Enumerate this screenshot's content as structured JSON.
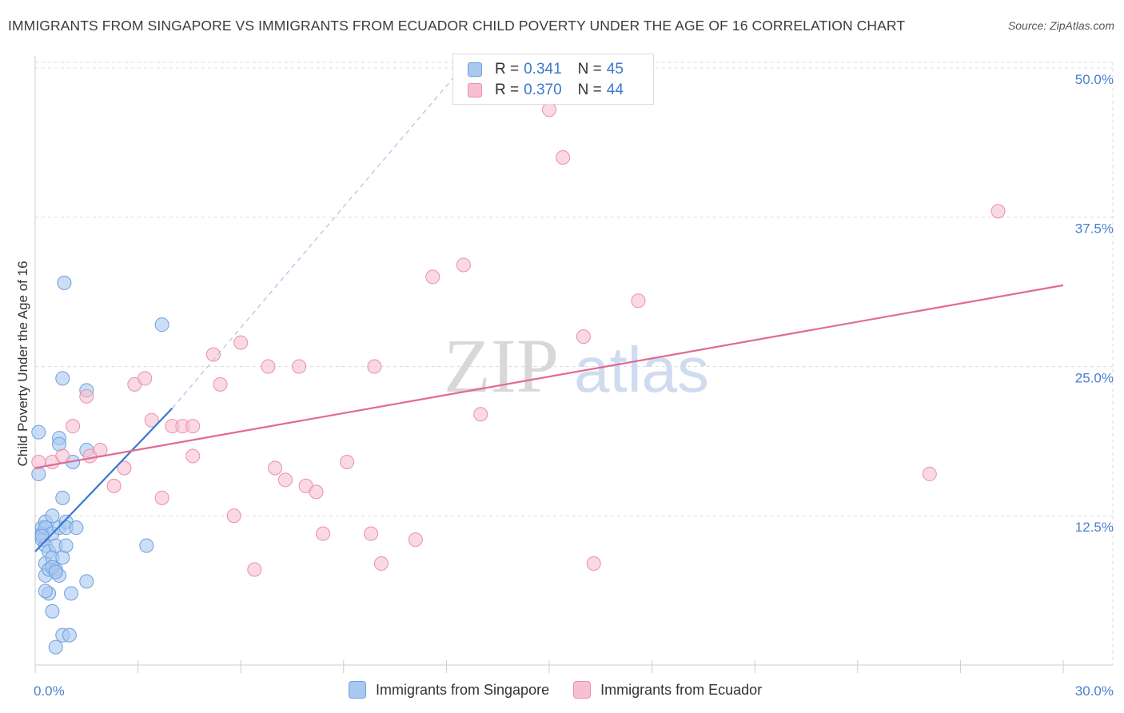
{
  "title": "IMMIGRANTS FROM SINGAPORE VS IMMIGRANTS FROM ECUADOR CHILD POVERTY UNDER THE AGE OF 16 CORRELATION CHART",
  "source": "Source: ZipAtlas.com",
  "watermark": {
    "zip": "ZIP",
    "atlas": "atlas"
  },
  "legend_stats": [
    {
      "r_label": "R =",
      "r_value": "0.341",
      "n_label": "N =",
      "n_value": "45"
    },
    {
      "r_label": "R =",
      "r_value": "0.370",
      "n_label": "N =",
      "n_value": "44"
    }
  ],
  "colors": {
    "singapore_fill": "#a8c8f0",
    "singapore_stroke": "#6d9fe0",
    "singapore_line": "#3a78d4",
    "ecuador_fill": "#f7c0d0",
    "ecuador_stroke": "#ea8fab",
    "ecuador_line": "#e06a93",
    "grid": "#dddddd",
    "axis_text": "#4a7fcf"
  },
  "chart_data": {
    "type": "scatter",
    "xlabel": "",
    "ylabel": "Child Poverty Under the Age of 16",
    "xlim": [
      0,
      30
    ],
    "ylim": [
      0,
      51
    ],
    "x_tick_labels": [
      {
        "value": 0,
        "label": "0.0%"
      },
      {
        "value": 30,
        "label": "30.0%"
      }
    ],
    "y_tick_labels": [
      {
        "value": 12.5,
        "label": "12.5%"
      },
      {
        "value": 25.0,
        "label": "25.0%"
      },
      {
        "value": 37.5,
        "label": "37.5%"
      },
      {
        "value": 50.0,
        "label": "50.0%"
      }
    ],
    "x_minor_ticks": [
      0,
      3,
      6,
      9,
      12,
      15,
      18,
      21,
      24,
      27,
      30
    ],
    "series": [
      {
        "name": "Immigrants from Singapore",
        "color_key": "singapore",
        "points": [
          [
            0.1,
            19.5
          ],
          [
            0.1,
            16.0
          ],
          [
            0.2,
            11.5
          ],
          [
            0.2,
            11.0
          ],
          [
            0.2,
            10.5
          ],
          [
            0.3,
            12.0
          ],
          [
            0.3,
            11.5
          ],
          [
            0.3,
            10.0
          ],
          [
            0.3,
            8.5
          ],
          [
            0.3,
            7.5
          ],
          [
            0.4,
            9.5
          ],
          [
            0.4,
            8.0
          ],
          [
            0.4,
            6.0
          ],
          [
            0.5,
            12.5
          ],
          [
            0.5,
            11.0
          ],
          [
            0.5,
            9.0
          ],
          [
            0.5,
            4.5
          ],
          [
            0.6,
            8.0
          ],
          [
            0.6,
            1.5
          ],
          [
            0.6,
            10.0
          ],
          [
            0.7,
            19.0
          ],
          [
            0.7,
            18.5
          ],
          [
            0.7,
            7.5
          ],
          [
            0.7,
            11.5
          ],
          [
            0.8,
            24.0
          ],
          [
            0.8,
            2.5
          ],
          [
            0.8,
            14.0
          ],
          [
            0.8,
            9.0
          ],
          [
            0.85,
            32.0
          ],
          [
            0.9,
            12.0
          ],
          [
            0.9,
            11.5
          ],
          [
            0.9,
            10.0
          ],
          [
            1.0,
            2.5
          ],
          [
            1.05,
            6.0
          ],
          [
            1.1,
            17.0
          ],
          [
            1.2,
            11.5
          ],
          [
            1.5,
            18.0
          ],
          [
            1.5,
            23.0
          ],
          [
            1.5,
            7.0
          ],
          [
            3.25,
            10.0
          ],
          [
            3.7,
            28.5
          ],
          [
            0.2,
            10.8
          ],
          [
            0.5,
            8.2
          ],
          [
            0.3,
            6.2
          ],
          [
            0.6,
            7.8
          ]
        ],
        "trend": {
          "x1": 0,
          "y1": 9.5,
          "x2": 4.0,
          "y2": 21.5,
          "dash_to_x": 12.3,
          "dash_to_y": 49.5
        }
      },
      {
        "name": "Immigrants from Ecuador",
        "color_key": "ecuador",
        "points": [
          [
            0.1,
            17.0
          ],
          [
            0.5,
            17.0
          ],
          [
            0.8,
            17.5
          ],
          [
            1.1,
            20.0
          ],
          [
            1.5,
            22.5
          ],
          [
            1.6,
            17.5
          ],
          [
            1.9,
            18.0
          ],
          [
            2.3,
            15.0
          ],
          [
            2.6,
            16.5
          ],
          [
            2.9,
            23.5
          ],
          [
            3.2,
            24.0
          ],
          [
            3.4,
            20.5
          ],
          [
            3.7,
            14.0
          ],
          [
            4.0,
            20.0
          ],
          [
            4.3,
            20.0
          ],
          [
            4.6,
            20.0
          ],
          [
            4.6,
            17.5
          ],
          [
            5.2,
            26.0
          ],
          [
            5.4,
            23.5
          ],
          [
            5.8,
            12.5
          ],
          [
            6.0,
            27.0
          ],
          [
            6.4,
            8.0
          ],
          [
            6.8,
            25.0
          ],
          [
            7.0,
            16.5
          ],
          [
            7.3,
            15.5
          ],
          [
            7.7,
            25.0
          ],
          [
            7.9,
            15.0
          ],
          [
            8.2,
            14.5
          ],
          [
            8.4,
            11.0
          ],
          [
            9.1,
            17.0
          ],
          [
            9.8,
            11.0
          ],
          [
            9.9,
            25.0
          ],
          [
            10.1,
            8.5
          ],
          [
            11.1,
            10.5
          ],
          [
            11.6,
            32.5
          ],
          [
            12.5,
            33.5
          ],
          [
            13.0,
            21.0
          ],
          [
            15.0,
            46.5
          ],
          [
            15.4,
            42.5
          ],
          [
            16.0,
            27.5
          ],
          [
            16.3,
            8.5
          ],
          [
            17.6,
            30.5
          ],
          [
            26.1,
            16.0
          ],
          [
            28.1,
            38.0
          ]
        ],
        "trend": {
          "x1": 0,
          "y1": 16.5,
          "x2": 30,
          "y2": 31.8
        }
      }
    ]
  },
  "bottom_legend": [
    {
      "label": "Immigrants from Singapore",
      "color_key": "singapore"
    },
    {
      "label": "Immigrants from Ecuador",
      "color_key": "ecuador"
    }
  ]
}
